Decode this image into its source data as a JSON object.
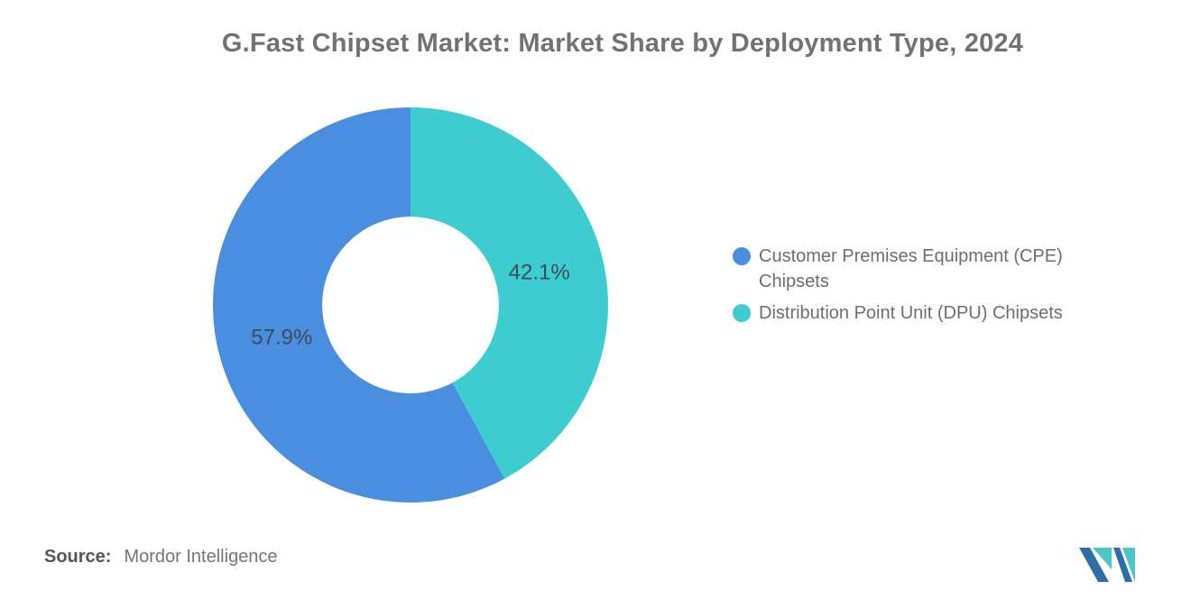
{
  "chart_data": {
    "type": "pie",
    "donut": true,
    "title": "G.Fast Chipset Market: Market Share by Deployment Type, 2024",
    "slices": [
      {
        "label": "Customer Premises Equipment (CPE) Chipsets",
        "value": 57.9,
        "data_label": "57.9%",
        "color": "#4A8EDF"
      },
      {
        "label": "Distribution Point Unit (DPU) Chipsets",
        "value": 42.1,
        "data_label": "42.1%",
        "color": "#3DCDD1"
      }
    ],
    "rotation_deg": 151.56,
    "inner_radius_ratio": 0.447,
    "legend_position": "right",
    "label_color": "#414B55"
  },
  "footer": {
    "source_label": "Source:",
    "source_value": "Mordor Intelligence"
  },
  "logo": {
    "name": "mordor-intelligence-logo",
    "dark_blue": "#2D6DA8",
    "teal": "#4CC5C9"
  }
}
